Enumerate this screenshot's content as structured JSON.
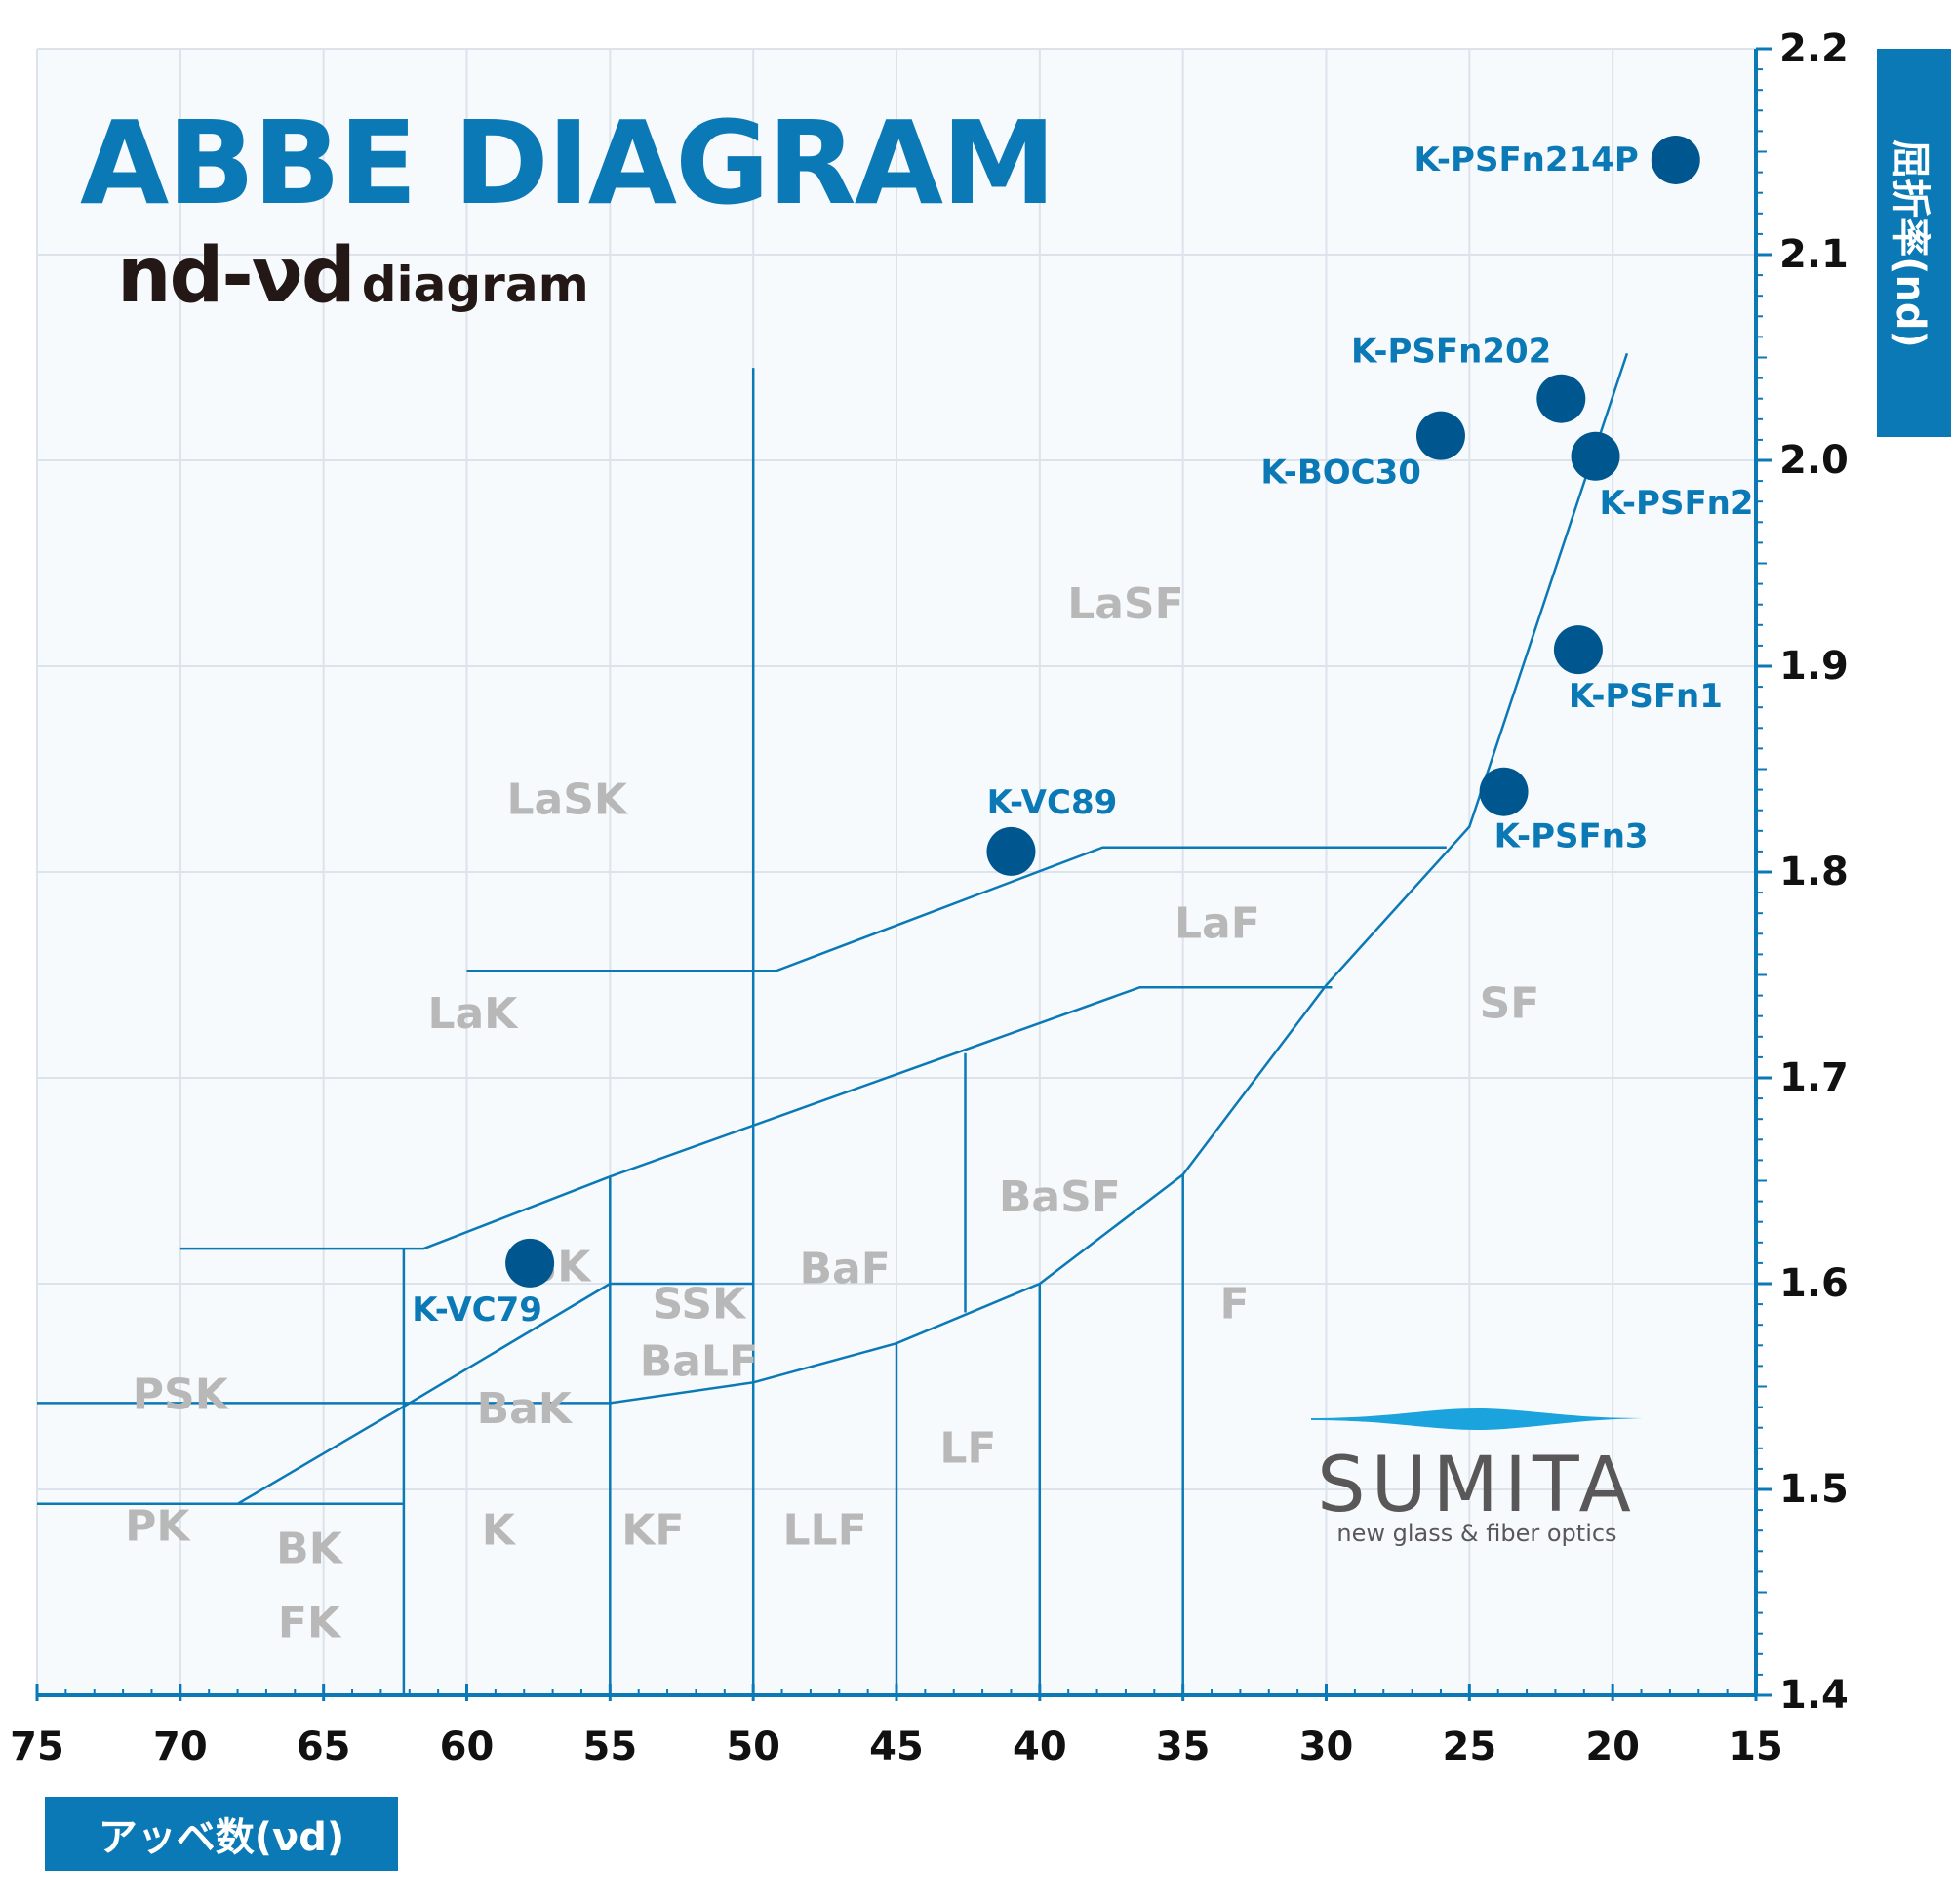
{
  "header": {
    "title": "ABBE DIAGRAM",
    "subtitle_main": "nd-νd",
    "subtitle_small": "diagram"
  },
  "axes": {
    "y_label": "屈折率(nd)",
    "x_label": "アッベ数(νd)"
  },
  "logo": {
    "name": "SUMITA",
    "tagline": "new glass & fiber optics"
  },
  "chart_data": {
    "type": "scatter",
    "xlabel": "アッベ数(νd)",
    "ylabel": "屈折率(nd)",
    "xlim": [
      75,
      15
    ],
    "ylim": [
      1.4,
      2.2
    ],
    "x_ticks": [
      75,
      70,
      65,
      60,
      55,
      50,
      45,
      40,
      35,
      30,
      25,
      20,
      15
    ],
    "y_ticks": [
      1.4,
      1.5,
      1.6,
      1.7,
      1.8,
      1.9,
      2.0,
      2.1,
      2.2
    ],
    "grid": true,
    "points": [
      {
        "label": "K-PSFn214P",
        "x": 17.8,
        "y": 2.146
      },
      {
        "label": "K-PSFn202",
        "x": 21.8,
        "y": 2.03
      },
      {
        "label": "K-BOC30",
        "x": 26.0,
        "y": 2.012
      },
      {
        "label": "K-PSFn2",
        "x": 20.6,
        "y": 2.002
      },
      {
        "label": "K-PSFn1",
        "x": 21.2,
        "y": 1.908
      },
      {
        "label": "K-PSFn3",
        "x": 23.8,
        "y": 1.839
      },
      {
        "label": "K-VC89",
        "x": 41.0,
        "y": 1.81
      },
      {
        "label": "K-VC79",
        "x": 57.8,
        "y": 1.61
      }
    ],
    "boundaries": [
      [
        [
          19.5,
          2.052
        ],
        [
          25.0,
          1.822
        ],
        [
          30.0,
          1.745
        ],
        [
          35.0,
          1.653
        ],
        [
          40.0,
          1.6
        ],
        [
          45.0,
          1.571
        ],
        [
          50.0,
          1.552
        ],
        [
          55.0,
          1.542
        ],
        [
          62.0,
          1.542
        ],
        [
          68.0,
          1.493
        ]
      ],
      [
        [
          50.0,
          2.045
        ],
        [
          50.0,
          1.4
        ]
      ],
      [
        [
          25.8,
          1.812
        ],
        [
          37.8,
          1.812
        ],
        [
          49.2,
          1.752
        ],
        [
          60.0,
          1.752
        ]
      ],
      [
        [
          29.8,
          1.744
        ],
        [
          36.5,
          1.744
        ],
        [
          55.0,
          1.652
        ],
        [
          61.5,
          1.617
        ],
        [
          70.0,
          1.617
        ]
      ],
      [
        [
          42.6,
          1.712
        ],
        [
          42.6,
          1.586
        ]
      ],
      [
        [
          62.2,
          1.617
        ],
        [
          62.2,
          1.4
        ]
      ],
      [
        [
          55.0,
          1.652
        ],
        [
          55.0,
          1.4
        ]
      ],
      [
        [
          50.0,
          1.6
        ],
        [
          55.0,
          1.6
        ]
      ],
      [
        [
          55.0,
          1.6
        ],
        [
          62.0,
          1.542
        ]
      ],
      [
        [
          75.0,
          1.542
        ],
        [
          62.0,
          1.542
        ]
      ],
      [
        [
          75.0,
          1.493
        ],
        [
          62.2,
          1.493
        ]
      ],
      [
        [
          45.0,
          1.571
        ],
        [
          45.0,
          1.4
        ]
      ],
      [
        [
          40.0,
          1.6
        ],
        [
          40.0,
          1.4
        ]
      ],
      [
        [
          35.0,
          1.653
        ],
        [
          35.0,
          1.4
        ]
      ]
    ],
    "regions": [
      {
        "label": "LaSF",
        "x": 37.0,
        "y": 1.93
      },
      {
        "label": "LaSK",
        "x": 56.5,
        "y": 1.835
      },
      {
        "label": "LaF",
        "x": 33.8,
        "y": 1.775
      },
      {
        "label": "LaK",
        "x": 59.8,
        "y": 1.731
      },
      {
        "label": "SF",
        "x": 23.6,
        "y": 1.736
      },
      {
        "label": "BaSF",
        "x": 39.3,
        "y": 1.642
      },
      {
        "label": "BaF",
        "x": 46.8,
        "y": 1.607
      },
      {
        "label": "SSK",
        "x": 51.9,
        "y": 1.59
      },
      {
        "label": "SK",
        "x": 56.8,
        "y": 1.608
      },
      {
        "label": "F",
        "x": 33.2,
        "y": 1.59
      },
      {
        "label": "BaLF",
        "x": 51.9,
        "y": 1.562
      },
      {
        "label": "PSK",
        "x": 70.0,
        "y": 1.546
      },
      {
        "label": "BaK",
        "x": 58.0,
        "y": 1.539
      },
      {
        "label": "LF",
        "x": 42.5,
        "y": 1.52
      },
      {
        "label": "PK",
        "x": 70.8,
        "y": 1.482
      },
      {
        "label": "BK",
        "x": 65.5,
        "y": 1.471
      },
      {
        "label": "K",
        "x": 58.9,
        "y": 1.48
      },
      {
        "label": "KF",
        "x": 53.5,
        "y": 1.48
      },
      {
        "label": "LLF",
        "x": 47.5,
        "y": 1.48
      },
      {
        "label": "FK",
        "x": 65.5,
        "y": 1.435
      }
    ]
  }
}
